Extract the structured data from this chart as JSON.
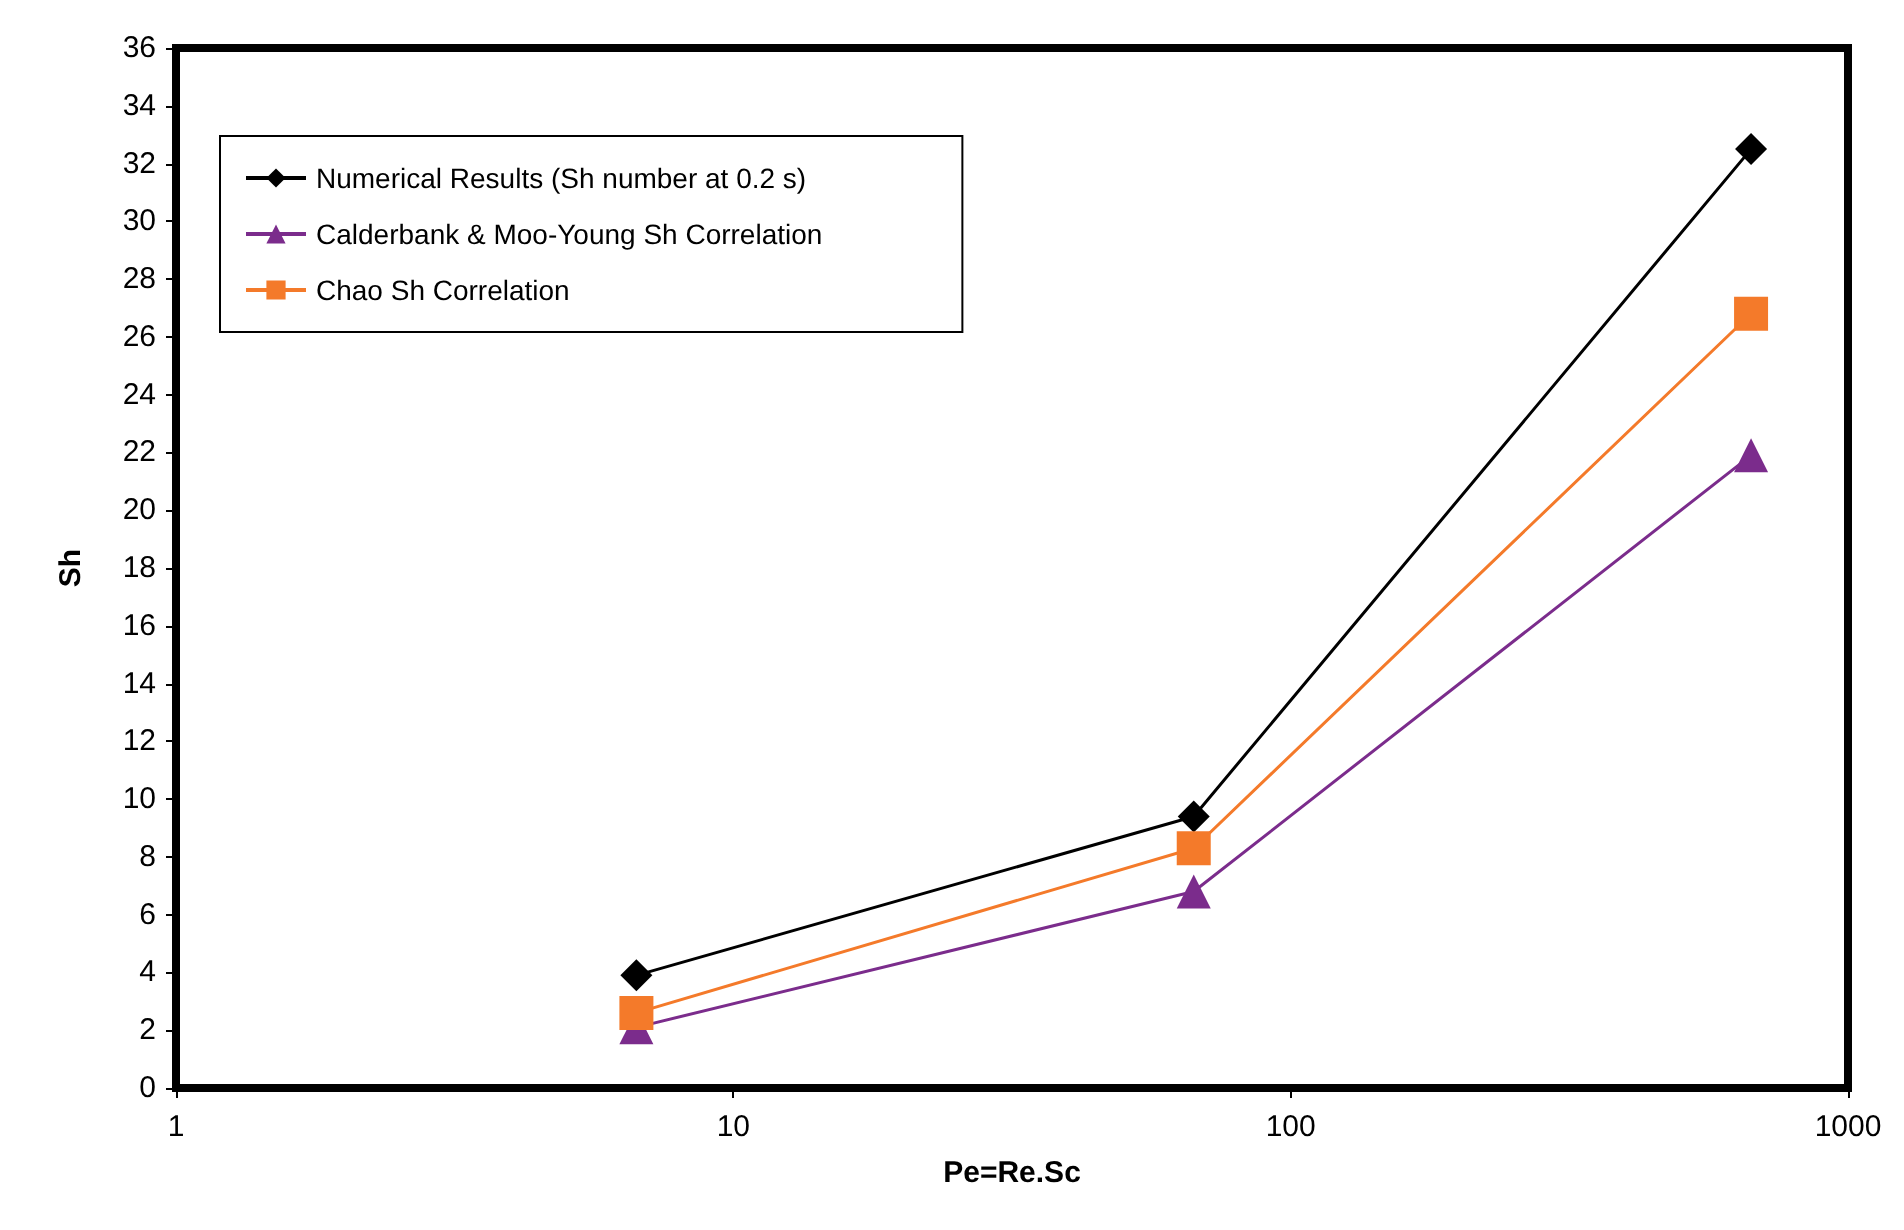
{
  "chart_data": {
    "type": "line",
    "xlabel": "Pe=Re.Sc",
    "ylabel": "Sh",
    "log": "x",
    "xlim": [
      1,
      1000
    ],
    "xticks": [
      1,
      10,
      100,
      1000
    ],
    "ylim": [
      0,
      36
    ],
    "yticks": [
      0,
      2,
      4,
      6,
      8,
      10,
      12,
      14,
      16,
      18,
      20,
      22,
      24,
      26,
      28,
      30,
      32,
      34,
      36
    ],
    "grid": false,
    "legend": "top left",
    "line_style": "solid",
    "x": [
      6.7,
      67,
      670
    ],
    "series": [
      {
        "name": "Numerical Results (Sh number at 0.2 s)",
        "color": "#000000",
        "marker": "diamond",
        "values": [
          3.9,
          9.4,
          32.5
        ]
      },
      {
        "name": "Calderbank & Moo-Young Sh Correlation",
        "color": "#7b2c8c",
        "marker": "triangle",
        "values": [
          2.1,
          6.8,
          21.9
        ]
      },
      {
        "name": "Chao Sh Correlation",
        "color": "#f47a2a",
        "marker": "square",
        "values": [
          2.6,
          8.3,
          26.8
        ]
      }
    ]
  }
}
